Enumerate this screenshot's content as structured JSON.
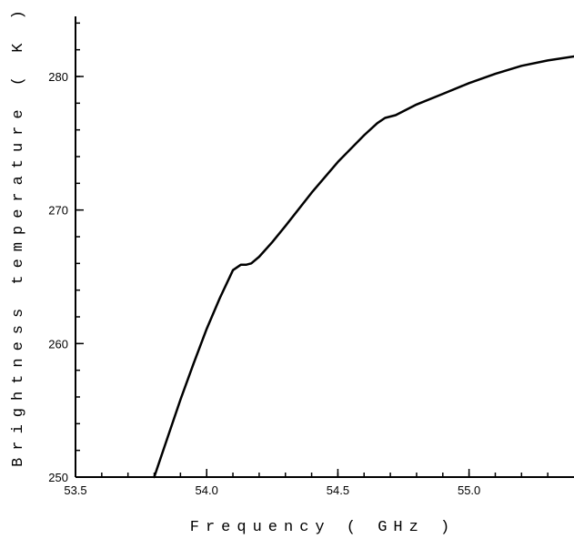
{
  "chart_data": {
    "type": "line",
    "xlabel": "Frequency ( GHz )",
    "ylabel": "Brightness temperature ( K )",
    "xlim": [
      53.5,
      55.4
    ],
    "ylim": [
      250,
      284
    ],
    "x_ticks": [
      53.5,
      54.0,
      54.5,
      55.0
    ],
    "x_tick_labels": [
      "53.5",
      "54.0",
      "54.5",
      "55.0"
    ],
    "x_minor_step": 0.1,
    "y_ticks": [
      250,
      260,
      270,
      280
    ],
    "y_tick_labels": [
      "250",
      "260",
      "270",
      "280"
    ],
    "y_minor_step": 2,
    "grid": false,
    "series": [
      {
        "x": [
          53.8,
          53.85,
          53.9,
          53.95,
          54.0,
          54.05,
          54.1,
          54.13,
          54.15,
          54.17,
          54.2,
          54.25,
          54.3,
          54.4,
          54.5,
          54.6,
          54.65,
          54.68,
          54.7,
          54.72,
          54.8,
          54.9,
          55.0,
          55.1,
          55.2,
          55.3,
          55.4
        ],
        "y": [
          250.0,
          252.9,
          255.8,
          258.5,
          261.1,
          263.4,
          265.5,
          265.9,
          265.9,
          266.0,
          266.5,
          267.6,
          268.8,
          271.3,
          273.6,
          275.6,
          276.5,
          276.9,
          277.0,
          277.1,
          277.9,
          278.7,
          279.5,
          280.2,
          280.8,
          281.2,
          281.5
        ]
      }
    ]
  }
}
